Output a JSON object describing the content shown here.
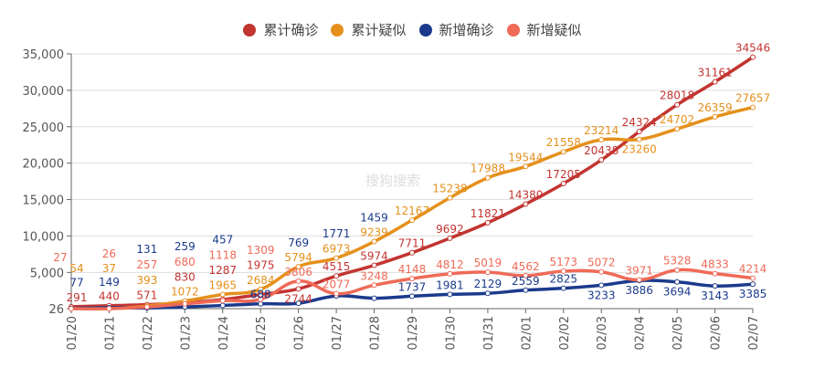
{
  "watermark": "搜狗搜索",
  "chart_data": {
    "type": "line",
    "smooth": true,
    "legend_position": "top",
    "grid": true,
    "categories": [
      "01/20",
      "01/21",
      "01/22",
      "01/23",
      "01/24",
      "01/25",
      "01/26",
      "01/27",
      "01/28",
      "01/29",
      "01/30",
      "01/31",
      "02/01",
      "02/02",
      "02/03",
      "02/04",
      "02/05",
      "02/06",
      "02/07"
    ],
    "ylim": [
      26,
      35000
    ],
    "yticks": [
      "26",
      "5,000",
      "10,000",
      "15,000",
      "20,000",
      "25,000",
      "30,000",
      "35,000"
    ],
    "ytick_values": [
      26,
      5000,
      10000,
      15000,
      20000,
      25000,
      30000,
      35000
    ],
    "series": [
      {
        "name": "累计确诊",
        "color": "#c23531",
        "values": [
          291,
          440,
          571,
          830,
          1287,
          1975,
          2744,
          4515,
          5974,
          7711,
          9692,
          11821,
          14380,
          17205,
          20438,
          24324,
          28018,
          31161,
          34546
        ]
      },
      {
        "name": "累计疑似",
        "color": "#e5901c",
        "values": [
          54,
          37,
          393,
          1072,
          1965,
          2684,
          5794,
          6973,
          9239,
          12167,
          15238,
          17988,
          19544,
          21558,
          23214,
          23260,
          24702,
          26359,
          27657
        ]
      },
      {
        "name": "新增确诊",
        "color": "#1b3a8c",
        "values": [
          77,
          149,
          131,
          259,
          457,
          688,
          769,
          1771,
          1459,
          1737,
          1981,
          2129,
          2559,
          2825,
          3233,
          3886,
          3694,
          3143,
          3385
        ]
      },
      {
        "name": "新增疑似",
        "color": "#ef6a57",
        "values": [
          27,
          26,
          257,
          680,
          1118,
          1309,
          3806,
          2077,
          3248,
          4148,
          4812,
          5019,
          4562,
          5173,
          5072,
          3971,
          5328,
          4833,
          4214
        ]
      }
    ]
  }
}
